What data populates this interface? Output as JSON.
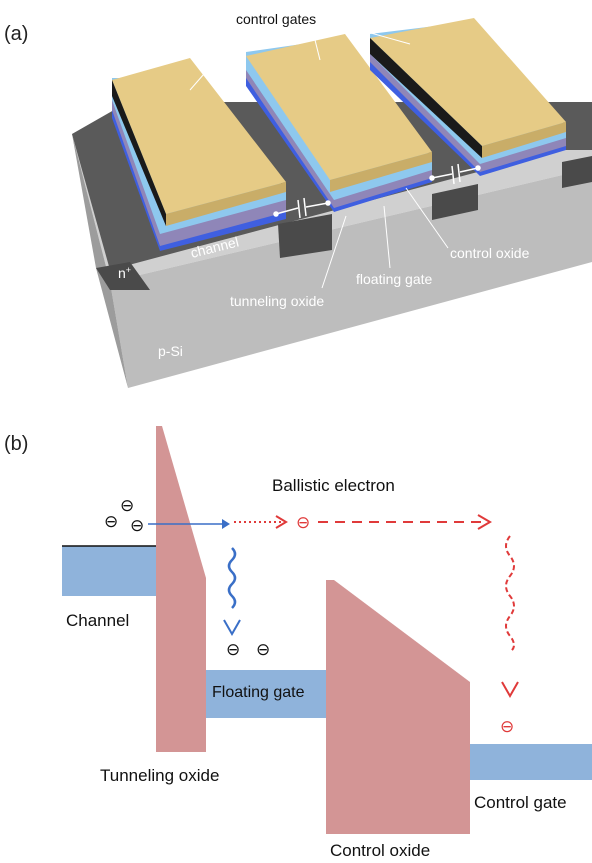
{
  "panel_a": {
    "label": "(a)",
    "labels": {
      "control_gates": "control gates",
      "channel": "channel",
      "control_oxide": "control oxide",
      "floating_gate": "floating gate",
      "tunneling_oxide": "tunneling oxide",
      "n_plus": "n",
      "n_plus_sup": "+",
      "substrate": "p-Si"
    }
  },
  "panel_b": {
    "label": "(b)",
    "labels": {
      "ballistic_electron": "Ballistic electron",
      "channel": "Channel",
      "floating_gate": "Floating gate",
      "tunneling_oxide": "Tunneling oxide",
      "control_oxide": "Control oxide",
      "control_gate": "Control gate",
      "electron_symbol": "⊖"
    }
  },
  "colors": {
    "gate_gold": "#e6cb86",
    "oxide_light_blue": "#8ec8ee",
    "floating_purple": "#8f86b8",
    "channel_blue": "#3f5fe0",
    "substrate_gray": "#bdbdbd",
    "implant_dark": "#555555",
    "band_blue": "#8fb3db",
    "barrier_pink": "#d39595",
    "ballistic_red": "#e03a3a",
    "relax_blue": "#3a6fc7"
  }
}
